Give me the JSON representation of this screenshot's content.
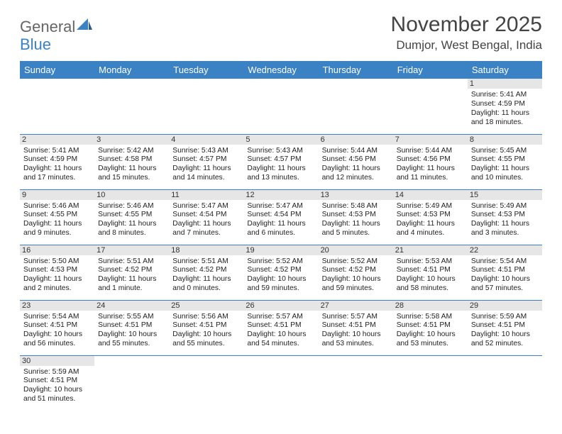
{
  "logo": {
    "part1": "General",
    "part2": "Blue"
  },
  "title": "November 2025",
  "location": "Dumjor, West Bengal, India",
  "header_bg": "#3b82c4",
  "weekdays": [
    "Sunday",
    "Monday",
    "Tuesday",
    "Wednesday",
    "Thursday",
    "Friday",
    "Saturday"
  ],
  "weeks": [
    [
      null,
      null,
      null,
      null,
      null,
      null,
      {
        "n": "1",
        "sr": "5:41 AM",
        "ss": "4:59 PM",
        "dl": "11 hours and 18 minutes."
      }
    ],
    [
      {
        "n": "2",
        "sr": "5:41 AM",
        "ss": "4:59 PM",
        "dl": "11 hours and 17 minutes."
      },
      {
        "n": "3",
        "sr": "5:42 AM",
        "ss": "4:58 PM",
        "dl": "11 hours and 15 minutes."
      },
      {
        "n": "4",
        "sr": "5:43 AM",
        "ss": "4:57 PM",
        "dl": "11 hours and 14 minutes."
      },
      {
        "n": "5",
        "sr": "5:43 AM",
        "ss": "4:57 PM",
        "dl": "11 hours and 13 minutes."
      },
      {
        "n": "6",
        "sr": "5:44 AM",
        "ss": "4:56 PM",
        "dl": "11 hours and 12 minutes."
      },
      {
        "n": "7",
        "sr": "5:44 AM",
        "ss": "4:56 PM",
        "dl": "11 hours and 11 minutes."
      },
      {
        "n": "8",
        "sr": "5:45 AM",
        "ss": "4:55 PM",
        "dl": "11 hours and 10 minutes."
      }
    ],
    [
      {
        "n": "9",
        "sr": "5:46 AM",
        "ss": "4:55 PM",
        "dl": "11 hours and 9 minutes."
      },
      {
        "n": "10",
        "sr": "5:46 AM",
        "ss": "4:55 PM",
        "dl": "11 hours and 8 minutes."
      },
      {
        "n": "11",
        "sr": "5:47 AM",
        "ss": "4:54 PM",
        "dl": "11 hours and 7 minutes."
      },
      {
        "n": "12",
        "sr": "5:47 AM",
        "ss": "4:54 PM",
        "dl": "11 hours and 6 minutes."
      },
      {
        "n": "13",
        "sr": "5:48 AM",
        "ss": "4:53 PM",
        "dl": "11 hours and 5 minutes."
      },
      {
        "n": "14",
        "sr": "5:49 AM",
        "ss": "4:53 PM",
        "dl": "11 hours and 4 minutes."
      },
      {
        "n": "15",
        "sr": "5:49 AM",
        "ss": "4:53 PM",
        "dl": "11 hours and 3 minutes."
      }
    ],
    [
      {
        "n": "16",
        "sr": "5:50 AM",
        "ss": "4:53 PM",
        "dl": "11 hours and 2 minutes."
      },
      {
        "n": "17",
        "sr": "5:51 AM",
        "ss": "4:52 PM",
        "dl": "11 hours and 1 minute."
      },
      {
        "n": "18",
        "sr": "5:51 AM",
        "ss": "4:52 PM",
        "dl": "11 hours and 0 minutes."
      },
      {
        "n": "19",
        "sr": "5:52 AM",
        "ss": "4:52 PM",
        "dl": "10 hours and 59 minutes."
      },
      {
        "n": "20",
        "sr": "5:52 AM",
        "ss": "4:52 PM",
        "dl": "10 hours and 59 minutes."
      },
      {
        "n": "21",
        "sr": "5:53 AM",
        "ss": "4:51 PM",
        "dl": "10 hours and 58 minutes."
      },
      {
        "n": "22",
        "sr": "5:54 AM",
        "ss": "4:51 PM",
        "dl": "10 hours and 57 minutes."
      }
    ],
    [
      {
        "n": "23",
        "sr": "5:54 AM",
        "ss": "4:51 PM",
        "dl": "10 hours and 56 minutes."
      },
      {
        "n": "24",
        "sr": "5:55 AM",
        "ss": "4:51 PM",
        "dl": "10 hours and 55 minutes."
      },
      {
        "n": "25",
        "sr": "5:56 AM",
        "ss": "4:51 PM",
        "dl": "10 hours and 55 minutes."
      },
      {
        "n": "26",
        "sr": "5:57 AM",
        "ss": "4:51 PM",
        "dl": "10 hours and 54 minutes."
      },
      {
        "n": "27",
        "sr": "5:57 AM",
        "ss": "4:51 PM",
        "dl": "10 hours and 53 minutes."
      },
      {
        "n": "28",
        "sr": "5:58 AM",
        "ss": "4:51 PM",
        "dl": "10 hours and 53 minutes."
      },
      {
        "n": "29",
        "sr": "5:59 AM",
        "ss": "4:51 PM",
        "dl": "10 hours and 52 minutes."
      }
    ],
    [
      {
        "n": "30",
        "sr": "5:59 AM",
        "ss": "4:51 PM",
        "dl": "10 hours and 51 minutes."
      },
      null,
      null,
      null,
      null,
      null,
      null
    ]
  ],
  "labels": {
    "sunrise": "Sunrise: ",
    "sunset": "Sunset: ",
    "daylight": "Daylight: "
  }
}
